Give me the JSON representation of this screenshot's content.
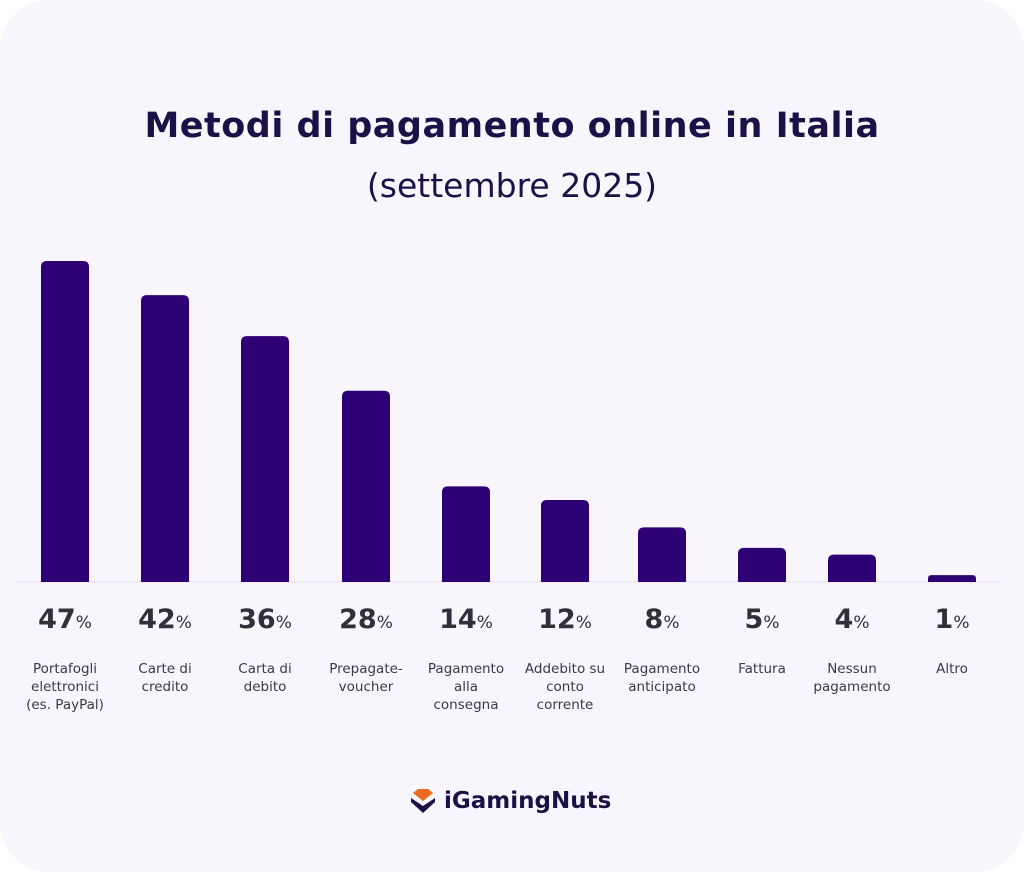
{
  "chart_data": {
    "type": "bar",
    "title": "Metodi di pagamento online in Italia",
    "subtitle": "(settembre 2025)",
    "unit": "%",
    "categories": [
      [
        "Portafogli",
        "elettronici",
        "(es. PayPal)"
      ],
      [
        "Carte di",
        "credito"
      ],
      [
        "Carta di",
        "debito"
      ],
      [
        "Prepagate-",
        "voucher"
      ],
      [
        "Pagamento",
        "alla",
        "consegna"
      ],
      [
        "Addebito su",
        "conto",
        "corrente"
      ],
      [
        "Pagamento",
        "anticipato"
      ],
      [
        "Fattura"
      ],
      [
        "Nessun",
        "pagamento"
      ],
      [
        "Altro"
      ]
    ],
    "values": [
      47,
      42,
      36,
      28,
      14,
      12,
      8,
      5,
      4,
      1
    ],
    "ylim": [
      0,
      47
    ],
    "grid": false,
    "bar_color": "#2d0076"
  },
  "brand": {
    "name": "iGamingNuts",
    "colors": {
      "accent": "#ef6a22",
      "dark": "#1c1147"
    }
  }
}
